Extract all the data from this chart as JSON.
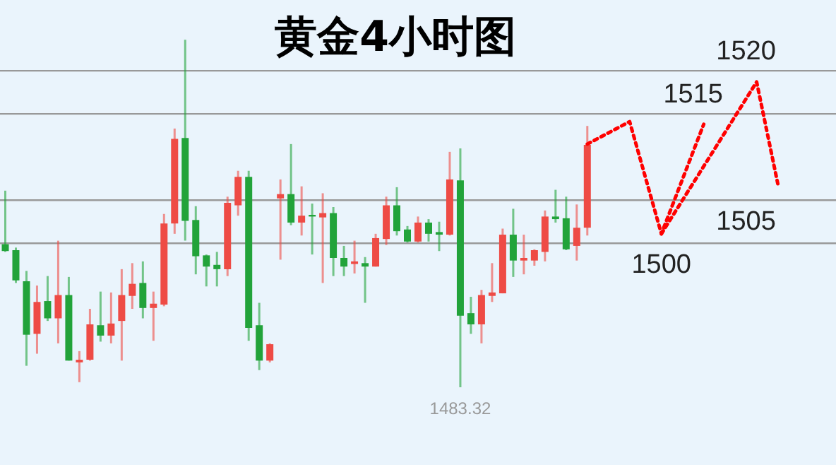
{
  "chart_data": {
    "type": "candlestick",
    "title": "黄金4小时图",
    "categories": [
      null,
      null,
      null,
      null,
      null,
      null,
      null,
      null,
      null,
      null,
      null,
      null,
      null,
      null,
      null,
      null,
      null,
      null,
      null,
      null,
      null,
      null,
      null,
      null,
      null,
      null,
      null,
      null,
      null,
      null,
      null,
      null,
      null,
      null,
      null,
      null,
      null,
      null,
      null,
      null,
      null,
      null,
      null,
      null,
      null,
      null,
      null,
      null,
      null,
      null,
      null,
      null,
      null,
      null,
      null,
      null,
      null,
      null,
      null,
      null,
      null,
      null,
      null,
      null,
      null,
      null,
      null,
      null,
      null,
      null,
      null,
      null,
      null,
      null,
      null,
      null,
      null,
      null,
      null
    ],
    "ohlc": [
      [
        1499.9,
        1506.1,
        1499.0,
        1499.1
      ],
      [
        1499.2,
        1499.5,
        1495.4,
        1495.7
      ],
      [
        1495.6,
        1496.8,
        1485.8,
        1489.4
      ],
      [
        1489.5,
        1495.1,
        1487.2,
        1493.2
      ],
      [
        1493.3,
        1496.2,
        1491.0,
        1491.3
      ],
      [
        1491.3,
        1500.3,
        1488.4,
        1494.0
      ],
      [
        1494.0,
        1496.1,
        1486.4,
        1486.4
      ],
      [
        1486.2,
        1487.5,
        1483.9,
        1486.5
      ],
      [
        1486.5,
        1492.4,
        1486.4,
        1490.6
      ],
      [
        1490.5,
        1494.4,
        1488.6,
        1489.3
      ],
      [
        1489.3,
        1494.3,
        1488.4,
        1490.7
      ],
      [
        1491.0,
        1497.0,
        1486.4,
        1494.0
      ],
      [
        1493.9,
        1497.7,
        1492.4,
        1495.3
      ],
      [
        1495.4,
        1497.9,
        1491.3,
        1492.5
      ],
      [
        1492.5,
        1494.4,
        1488.7,
        1493.0
      ],
      [
        1492.9,
        1503.4,
        1492.7,
        1502.3
      ],
      [
        1502.3,
        1513.3,
        1501.1,
        1512.1
      ],
      [
        1512.2,
        1523.6,
        1500.3,
        1502.6
      ],
      [
        1502.7,
        1504.3,
        1496.4,
        1498.5
      ],
      [
        1498.6,
        1498.7,
        1495.0,
        1497.3
      ],
      [
        1497.5,
        1499.0,
        1495.0,
        1497.0
      ],
      [
        1497.0,
        1505.4,
        1496.2,
        1504.7
      ],
      [
        1504.4,
        1508.4,
        1503.2,
        1507.7
      ],
      [
        1507.7,
        1508.4,
        1488.7,
        1490.2
      ],
      [
        1490.5,
        1493.1,
        1485.3,
        1486.4
      ],
      [
        1486.4,
        1488.4,
        1486.2,
        1488.3
      ],
      [
        1505.2,
        1507.4,
        1498.1,
        1505.7
      ],
      [
        1505.7,
        1511.5,
        1502.1,
        1502.4
      ],
      [
        1502.4,
        1506.6,
        1500.9,
        1503.2
      ],
      [
        1503.3,
        1504.6,
        1498.7,
        1503.1
      ],
      [
        1503.0,
        1505.8,
        1495.4,
        1503.5
      ],
      [
        1503.5,
        1504.2,
        1496.2,
        1498.3
      ],
      [
        1498.3,
        1499.7,
        1496.2,
        1497.3
      ],
      [
        1497.6,
        1500.3,
        1496.5,
        1497.9
      ],
      [
        1497.7,
        1498.4,
        1493.1,
        1497.3
      ],
      [
        1497.3,
        1501.1,
        1497.3,
        1500.6
      ],
      [
        1500.5,
        1505.4,
        1499.8,
        1504.4
      ],
      [
        1504.4,
        1506.5,
        1500.9,
        1501.4
      ],
      [
        1501.6,
        1502.0,
        1500.1,
        1500.2
      ],
      [
        1500.2,
        1503.1,
        1500.1,
        1502.4
      ],
      [
        1502.4,
        1502.8,
        1500.2,
        1501.1
      ],
      [
        1501.3,
        1502.5,
        1499.1,
        1501.0
      ],
      [
        1501.0,
        1510.6,
        1500.9,
        1507.4
      ],
      [
        1507.3,
        1511.0,
        1483.32,
        1491.6
      ],
      [
        1491.9,
        1493.8,
        1489.5,
        1490.6
      ],
      [
        1490.6,
        1494.6,
        1488.4,
        1494.0
      ],
      [
        1493.9,
        1497.7,
        1493.2,
        1494.3
      ],
      [
        1494.2,
        1501.7,
        1494.2,
        1501.0
      ],
      [
        1501.0,
        1504.0,
        1496.1,
        1498.0
      ],
      [
        1498.0,
        1501.0,
        1496.4,
        1498.3
      ],
      [
        1498.0,
        1499.3,
        1497.4,
        1499.2
      ],
      [
        1499.0,
        1503.8,
        1497.9,
        1503.1
      ],
      [
        1503.1,
        1506.2,
        1502.4,
        1502.8
      ],
      [
        1502.9,
        1505.4,
        1499.2,
        1499.3
      ],
      [
        1499.7,
        1504.5,
        1498.0,
        1501.8
      ],
      [
        1501.8,
        1513.6,
        1500.9,
        1511.4
      ],
      null,
      null,
      null,
      null,
      null,
      null,
      null,
      null,
      null,
      null,
      null,
      null,
      null,
      null,
      null,
      null,
      null,
      null,
      null,
      null,
      null,
      null,
      null
    ],
    "colors": [
      "#22a33a",
      "#22a33a",
      "#22a33a",
      "#ee4b45",
      "#22a33a",
      "#ee4b45",
      "#22a33a",
      "#ee4b45",
      "#ee4b45",
      "#22a33a",
      "#ee4b45",
      "#ee4b45",
      "#ee4b45",
      "#22a33a",
      "#ee4b45",
      "#ee4b45",
      "#ee4b45",
      "#22a33a",
      "#22a33a",
      "#22a33a",
      "#22a33a",
      "#ee4b45",
      "#ee4b45",
      "#22a33a",
      "#22a33a",
      "#ee4b45",
      "#ee4b45",
      "#22a33a",
      "#ee4b45",
      "#22a33a",
      "#ee4b45",
      "#22a33a",
      "#22a33a",
      "#ee4b45",
      "#22a33a",
      "#ee4b45",
      "#ee4b45",
      "#22a33a",
      "#22a33a",
      "#ee4b45",
      "#22a33a",
      "#22a33a",
      "#ee4b45",
      "#22a33a",
      "#22a33a",
      "#ee4b45",
      "#ee4b45",
      "#ee4b45",
      "#22a33a",
      "#ee4b45",
      "#ee4b45",
      "#ee4b45",
      "#22a33a",
      "#22a33a",
      "#ee4b45",
      "#ee4b45",
      null,
      null,
      null,
      null,
      null,
      null,
      null,
      null,
      null,
      null,
      null,
      null,
      null,
      null,
      null,
      null,
      null,
      null,
      null,
      null,
      null,
      null,
      null
    ],
    "series": [
      {
        "type": "line",
        "color": "#ff0000",
        "values": [
          null,
          null,
          null,
          null,
          null,
          null,
          null,
          null,
          null,
          null,
          null,
          null,
          null,
          null,
          null,
          null,
          null,
          null,
          null,
          null,
          null,
          null,
          null,
          null,
          null,
          null,
          null,
          null,
          null,
          null,
          null,
          null,
          null,
          null,
          null,
          null,
          null,
          null,
          null,
          null,
          null,
          null,
          null,
          null,
          null,
          null,
          null,
          null,
          null,
          null,
          null,
          null,
          null,
          null,
          null,
          1511.5,
          null,
          null,
          null,
          1514.1,
          null,
          null,
          1501.1,
          null,
          null,
          null,
          1513.8,
          null,
          null,
          null,
          null,
          null,
          null,
          null,
          null,
          null,
          null,
          null,
          null
        ]
      },
      {
        "type": "line",
        "color": "#ff0000",
        "values": [
          null,
          null,
          null,
          null,
          null,
          null,
          null,
          null,
          null,
          null,
          null,
          null,
          null,
          null,
          null,
          null,
          null,
          null,
          null,
          null,
          null,
          null,
          null,
          null,
          null,
          null,
          null,
          null,
          null,
          null,
          null,
          null,
          null,
          null,
          null,
          null,
          null,
          null,
          null,
          null,
          null,
          null,
          null,
          null,
          null,
          null,
          null,
          null,
          null,
          null,
          null,
          null,
          null,
          null,
          null,
          null,
          null,
          null,
          null,
          null,
          null,
          null,
          1501.1,
          null,
          null,
          null,
          null,
          null,
          null,
          null,
          null,
          1518.7,
          null,
          1506.9,
          null,
          null,
          null,
          null,
          null
        ]
      }
    ],
    "line_style": "dotted",
    "ylim": [
      1474.3,
      1528.2
    ],
    "ref_lines": [
      {
        "axis": "y",
        "value": 1520,
        "label": "1520",
        "color": "#999999"
      },
      {
        "axis": "y",
        "value": 1515,
        "label": "1515",
        "color": "#999999"
      },
      {
        "axis": "y",
        "value": 1505,
        "label": "1505",
        "color": "#999999"
      },
      {
        "axis": "y",
        "value": 1500,
        "label": "1500",
        "color": "#999999"
      }
    ],
    "annotations": [
      {
        "text": "1483.32",
        "y": 1483.32
      }
    ]
  }
}
